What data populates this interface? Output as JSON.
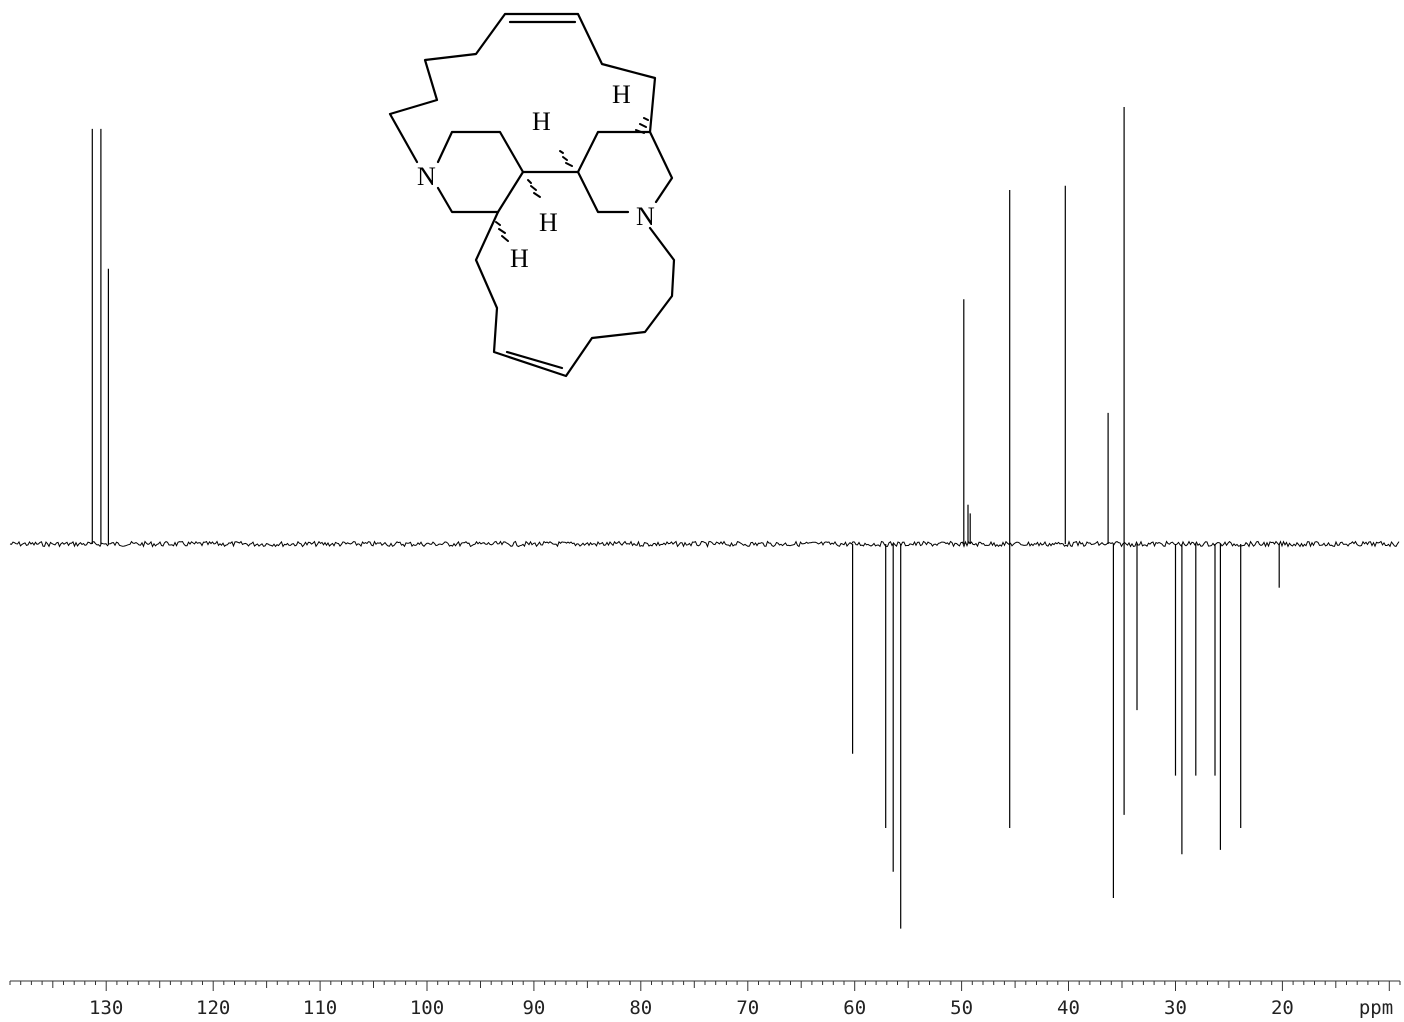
{
  "chart_data": {
    "type": "line",
    "title": "",
    "xlabel": "ppm",
    "ylabel": "",
    "xlim": [
      139,
      9
    ],
    "ylim": [
      -0.9,
      1.0
    ],
    "x_axis_reversed": true,
    "ticks": [
      130,
      120,
      110,
      100,
      90,
      80,
      70,
      60,
      50,
      40,
      30,
      20
    ],
    "tick_labels": [
      "130",
      "120",
      "110",
      "100",
      "90",
      "80",
      "70",
      "60",
      "50",
      "40",
      "30",
      "20"
    ],
    "axis_unit_label": "ppm",
    "grid": false,
    "legend": "none",
    "series": [
      {
        "peaks": [
          {
            "x": 131.3,
            "y": 0.95
          },
          {
            "x": 130.5,
            "y": 0.95
          },
          {
            "x": 129.8,
            "y": 0.63
          },
          {
            "x": 60.2,
            "y": -0.48
          },
          {
            "x": 57.1,
            "y": -0.65
          },
          {
            "x": 56.4,
            "y": -0.75
          },
          {
            "x": 55.7,
            "y": -0.88
          },
          {
            "x": 49.8,
            "y": 0.56
          },
          {
            "x": 49.4,
            "y": 0.09
          },
          {
            "x": 49.2,
            "y": 0.07
          },
          {
            "x": 45.5,
            "y": 0.81
          },
          {
            "x": 45.5,
            "y": -0.65
          },
          {
            "x": 40.3,
            "y": 0.82
          },
          {
            "x": 36.3,
            "y": 0.3
          },
          {
            "x": 35.8,
            "y": -0.81
          },
          {
            "x": 34.8,
            "y": 1.0
          },
          {
            "x": 34.8,
            "y": -0.62
          },
          {
            "x": 33.6,
            "y": -0.38
          },
          {
            "x": 30.0,
            "y": -0.53
          },
          {
            "x": 29.4,
            "y": -0.71
          },
          {
            "x": 28.1,
            "y": -0.53
          },
          {
            "x": 26.3,
            "y": -0.53
          },
          {
            "x": 25.8,
            "y": -0.7
          },
          {
            "x": 23.9,
            "y": -0.65
          },
          {
            "x": 20.3,
            "y": -0.1
          }
        ]
      }
    ]
  },
  "structure": {
    "atoms": [
      {
        "symbol": "N"
      },
      {
        "symbol": "N"
      },
      {
        "symbol": "H"
      },
      {
        "symbol": "H"
      },
      {
        "symbol": "H"
      },
      {
        "symbol": "H"
      }
    ]
  }
}
